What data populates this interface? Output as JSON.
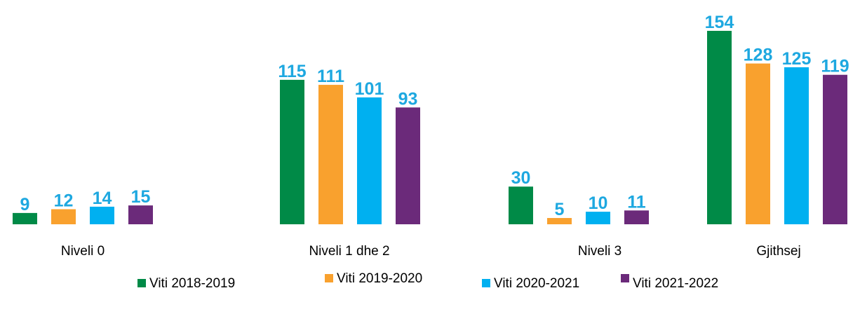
{
  "chart_data": {
    "type": "bar",
    "categories": [
      "Niveli 0",
      "Niveli 1 dhe 2",
      "Niveli 3",
      "Gjithsej"
    ],
    "series": [
      {
        "name": "Viti 2018-2019",
        "color": "#008a47",
        "values": [
          9,
          115,
          30,
          154
        ]
      },
      {
        "name": "Viti 2019-2020",
        "color": "#f9a12e",
        "values": [
          12,
          111,
          5,
          128
        ]
      },
      {
        "name": "Viti 2020-2021",
        "color": "#00b0f0",
        "values": [
          14,
          101,
          10,
          125
        ]
      },
      {
        "name": "Viti 2021-2022",
        "color": "#6b2a7a",
        "values": [
          15,
          93,
          11,
          119
        ]
      }
    ],
    "label_color": "#1ea8e0"
  }
}
